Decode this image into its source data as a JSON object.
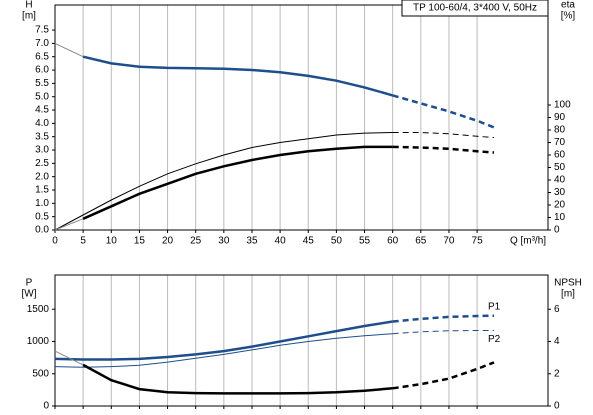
{
  "chart_data": [
    {
      "type": "line",
      "title": "TP 100-60/4, 3*400 V, 50Hz",
      "ylabel": [
        "H",
        "[m]"
      ],
      "y2label": [
        "eta",
        "[%]"
      ],
      "xlabel": "Q [m³/h]",
      "xlim": [
        0,
        87.6
      ],
      "xticks": [
        0,
        5,
        10,
        15,
        20,
        25,
        30,
        35,
        40,
        45,
        50,
        55,
        60,
        65,
        70,
        75
      ],
      "xtick_labels": true,
      "grid": true,
      "ylim": [
        0,
        8.44
      ],
      "yticks": [
        {
          "value": 0,
          "label": "0.0"
        },
        {
          "value": 0.5,
          "label": "0.5"
        },
        {
          "value": 1,
          "label": "1.0"
        },
        {
          "value": 1.5,
          "label": "1.5"
        },
        {
          "value": 2,
          "label": "2.0"
        },
        {
          "value": 2.5,
          "label": "2.5"
        },
        {
          "value": 3,
          "label": "3.0"
        },
        {
          "value": 3.5,
          "label": "3.5"
        },
        {
          "value": 4,
          "label": "4.0"
        },
        {
          "value": 4.5,
          "label": "4.5"
        },
        {
          "value": 5,
          "label": "5.0"
        },
        {
          "value": 5.5,
          "label": "5.5"
        },
        {
          "value": 6,
          "label": "6.0"
        },
        {
          "value": 6.5,
          "label": "6.5"
        },
        {
          "value": 7,
          "label": "7.0"
        },
        {
          "value": 7.5,
          "label": "7.5"
        }
      ],
      "y2lim": [
        0,
        180
      ],
      "y2ticks": [
        0,
        10,
        20,
        30,
        40,
        50,
        60,
        70,
        80,
        90,
        100
      ],
      "series": [
        {
          "color": "#888888",
          "width": 1,
          "dash": false,
          "x": [
            0,
            5
          ],
          "values": [
            7.0,
            6.5
          ]
        },
        {
          "color": "#1f4e8c",
          "width": 2.5,
          "dash": false,
          "x": [
            5,
            10,
            15,
            20,
            25,
            30,
            35,
            40,
            45,
            50,
            55,
            60
          ],
          "values": [
            6.5,
            6.25,
            6.12,
            6.08,
            6.07,
            6.05,
            6.0,
            5.92,
            5.78,
            5.6,
            5.35,
            5.05
          ]
        },
        {
          "color": "#1f4e8c",
          "width": 2.5,
          "dash": true,
          "x": [
            60,
            65,
            70,
            75,
            78
          ],
          "values": [
            5.05,
            4.75,
            4.45,
            4.1,
            3.85
          ]
        },
        {
          "color": "#000000",
          "width": 1,
          "dash": false,
          "axis": "y2",
          "x": [
            0,
            5,
            10,
            15,
            20,
            25,
            30,
            35,
            40,
            45,
            50,
            55,
            60
          ],
          "values": [
            0,
            12,
            24,
            35,
            45,
            53,
            60,
            66,
            70,
            73,
            76,
            77.5,
            78
          ]
        },
        {
          "color": "#000000",
          "width": 1,
          "dash": true,
          "axis": "y2",
          "x": [
            60,
            65,
            70,
            75,
            78
          ],
          "values": [
            78,
            78,
            77,
            75,
            74
          ]
        },
        {
          "color": "#888888",
          "width": 1,
          "dash": false,
          "axis": "y2",
          "x": [
            0,
            5
          ],
          "values": [
            0,
            9
          ]
        },
        {
          "color": "#000000",
          "width": 2.5,
          "dash": false,
          "axis": "y2",
          "x": [
            5,
            10,
            15,
            20,
            25,
            30,
            35,
            40,
            45,
            50,
            55,
            60
          ],
          "values": [
            9,
            19,
            29,
            37,
            45,
            51,
            56,
            60,
            63,
            65,
            66.5,
            66.5
          ]
        },
        {
          "color": "#000000",
          "width": 2.5,
          "dash": true,
          "axis": "y2",
          "x": [
            60,
            65,
            70,
            75,
            78
          ],
          "values": [
            66.5,
            66,
            65,
            63,
            62
          ]
        }
      ]
    },
    {
      "type": "line",
      "ylabel": [
        "P",
        "[W]"
      ],
      "y2label": [
        "NPSH",
        "[m]"
      ],
      "xlim": [
        0,
        87.6
      ],
      "xticks": [
        0,
        5,
        10,
        15,
        20,
        25,
        30,
        35,
        40,
        45,
        50,
        55,
        60,
        65,
        70,
        75
      ],
      "xtick_labels": false,
      "grid": true,
      "ylim": [
        0,
        2030
      ],
      "yticks": [
        0,
        500,
        1000,
        1500
      ],
      "y2lim": [
        0,
        8.12
      ],
      "y2ticks": [
        0,
        2,
        4,
        6
      ],
      "series": [
        {
          "color": "#1f4e8c",
          "width": 2.5,
          "dash": false,
          "x": [
            0,
            5,
            10,
            15,
            20,
            25,
            30,
            35,
            40,
            45,
            50,
            55,
            60
          ],
          "values": [
            730,
            720,
            720,
            730,
            760,
            800,
            850,
            920,
            1000,
            1080,
            1160,
            1240,
            1310
          ]
        },
        {
          "color": "#1f4e8c",
          "width": 2.5,
          "dash": true,
          "x": [
            60,
            65,
            70,
            75,
            78
          ],
          "values": [
            1310,
            1350,
            1380,
            1395,
            1400
          ],
          "label": "P1"
        },
        {
          "color": "#1f4e8c",
          "width": 1,
          "dash": false,
          "x": [
            0,
            5,
            10,
            15,
            20,
            25,
            30,
            35,
            40,
            45,
            50,
            55,
            60
          ],
          "values": [
            610,
            600,
            610,
            630,
            680,
            740,
            800,
            870,
            940,
            1000,
            1050,
            1090,
            1120
          ]
        },
        {
          "color": "#1f4e8c",
          "width": 1,
          "dash": true,
          "x": [
            60,
            65,
            70,
            75,
            78
          ],
          "values": [
            1120,
            1150,
            1165,
            1170,
            1170
          ],
          "label": "P2"
        },
        {
          "color": "#888888",
          "width": 1,
          "dash": false,
          "axis": "y2",
          "x": [
            0,
            5
          ],
          "values": [
            3.4,
            2.55
          ]
        },
        {
          "color": "#000000",
          "width": 2.5,
          "dash": false,
          "axis": "y2",
          "x": [
            5,
            10,
            15,
            20,
            25,
            30,
            35,
            40,
            45,
            50,
            55,
            60
          ],
          "values": [
            2.55,
            1.6,
            1.05,
            0.85,
            0.8,
            0.78,
            0.78,
            0.78,
            0.8,
            0.85,
            0.95,
            1.1
          ]
        },
        {
          "color": "#000000",
          "width": 2.5,
          "dash": true,
          "axis": "y2",
          "x": [
            60,
            65,
            70,
            75,
            78
          ],
          "values": [
            1.1,
            1.35,
            1.7,
            2.3,
            2.7
          ]
        }
      ]
    }
  ]
}
